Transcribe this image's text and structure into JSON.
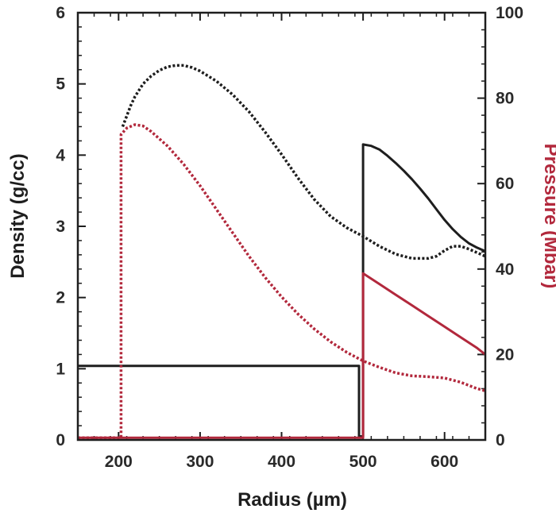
{
  "chart_data": {
    "type": "line",
    "xlabel": "Radius (µm)",
    "ylabel_left": "Density (g/cc)",
    "ylabel_right": "Pressure (Mbar)",
    "xlim": [
      150,
      650
    ],
    "ylim_left": [
      0,
      6
    ],
    "ylim_right": [
      0,
      100
    ],
    "x_ticks": [
      200,
      300,
      400,
      500,
      600
    ],
    "y_left_ticks": [
      0,
      1,
      2,
      3,
      4,
      5,
      6
    ],
    "y_right_ticks": [
      0,
      20,
      40,
      60,
      80,
      100
    ],
    "grid": false,
    "colors": {
      "density": "#1e1e1e",
      "pressure": "#b2283c",
      "axis": "#1e1e1e"
    },
    "series": [
      {
        "axis": "left",
        "style": "solid",
        "color_key": "density",
        "points": [
          [
            150,
            1.04
          ],
          [
            495,
            1.04
          ],
          [
            495,
            0.05
          ],
          [
            500,
            0.05
          ],
          [
            500,
            4.15
          ],
          [
            510,
            4.13
          ],
          [
            520,
            4.08
          ],
          [
            530,
            3.99
          ],
          [
            540,
            3.89
          ],
          [
            550,
            3.78
          ],
          [
            560,
            3.66
          ],
          [
            570,
            3.53
          ],
          [
            580,
            3.39
          ],
          [
            590,
            3.24
          ],
          [
            600,
            3.09
          ],
          [
            610,
            2.96
          ],
          [
            620,
            2.85
          ],
          [
            630,
            2.76
          ],
          [
            640,
            2.7
          ],
          [
            650,
            2.65
          ]
        ]
      },
      {
        "axis": "left",
        "style": "dotted",
        "color_key": "density",
        "points": [
          [
            205,
            4.4
          ],
          [
            210,
            4.55
          ],
          [
            215,
            4.7
          ],
          [
            220,
            4.82
          ],
          [
            230,
            5.0
          ],
          [
            240,
            5.11
          ],
          [
            250,
            5.19
          ],
          [
            260,
            5.24
          ],
          [
            270,
            5.26
          ],
          [
            280,
            5.26
          ],
          [
            290,
            5.23
          ],
          [
            300,
            5.18
          ],
          [
            320,
            5.04
          ],
          [
            340,
            4.85
          ],
          [
            360,
            4.61
          ],
          [
            380,
            4.32
          ],
          [
            400,
            4.01
          ],
          [
            420,
            3.68
          ],
          [
            440,
            3.38
          ],
          [
            460,
            3.14
          ],
          [
            480,
            2.98
          ],
          [
            500,
            2.86
          ],
          [
            520,
            2.72
          ],
          [
            540,
            2.61
          ],
          [
            560,
            2.55
          ],
          [
            580,
            2.55
          ],
          [
            590,
            2.58
          ],
          [
            600,
            2.66
          ],
          [
            610,
            2.72
          ],
          [
            620,
            2.72
          ],
          [
            630,
            2.68
          ],
          [
            640,
            2.63
          ],
          [
            650,
            2.58
          ]
        ]
      },
      {
        "axis": "right",
        "style": "solid",
        "color_key": "pressure",
        "points": [
          [
            150,
            0.5
          ],
          [
            500,
            0.5
          ],
          [
            500,
            39.0
          ],
          [
            520,
            36.5
          ],
          [
            540,
            34.0
          ],
          [
            560,
            31.5
          ],
          [
            580,
            29.0
          ],
          [
            600,
            26.5
          ],
          [
            620,
            24.0
          ],
          [
            640,
            21.5
          ],
          [
            650,
            20.0
          ]
        ]
      },
      {
        "axis": "right",
        "style": "dotted",
        "color_key": "pressure",
        "points": [
          [
            150,
            0.5
          ],
          [
            203,
            0.5
          ],
          [
            203,
            71.5
          ],
          [
            210,
            73.0
          ],
          [
            220,
            73.8
          ],
          [
            230,
            73.5
          ],
          [
            240,
            72.2
          ],
          [
            260,
            68.8
          ],
          [
            280,
            64.5
          ],
          [
            300,
            59.5
          ],
          [
            320,
            54.0
          ],
          [
            340,
            48.5
          ],
          [
            360,
            43.0
          ],
          [
            380,
            38.0
          ],
          [
            400,
            33.5
          ],
          [
            420,
            29.5
          ],
          [
            440,
            26.0
          ],
          [
            460,
            23.0
          ],
          [
            480,
            20.5
          ],
          [
            500,
            18.5
          ],
          [
            520,
            17.0
          ],
          [
            540,
            15.7
          ],
          [
            560,
            15.0
          ],
          [
            580,
            14.8
          ],
          [
            600,
            14.5
          ],
          [
            620,
            13.5
          ],
          [
            640,
            12.0
          ],
          [
            650,
            11.5
          ]
        ]
      }
    ]
  }
}
